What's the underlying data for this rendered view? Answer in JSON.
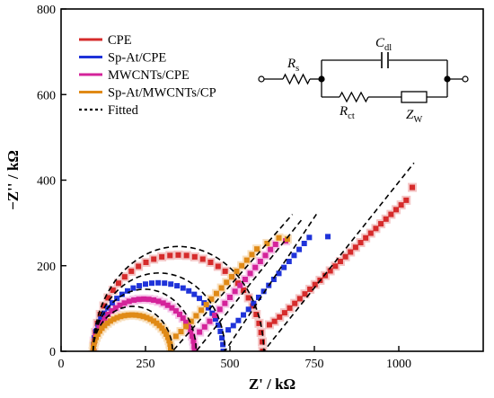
{
  "chart_data": {
    "type": "scatter",
    "xlabel": "Z' / kΩ",
    "ylabel": "−Z'' / kΩ",
    "xlim": [
      0,
      1250
    ],
    "ylim": [
      0,
      800
    ],
    "x_ticks": [
      0,
      250,
      500,
      750,
      1000
    ],
    "y_ticks": [
      0,
      200,
      400,
      600,
      800
    ],
    "grid": false,
    "legend_position": "top-left",
    "series": [
      {
        "name": "CPE",
        "color": "#d62b2b",
        "halo": "#f4c6c6",
        "marker": "square",
        "rs": 97,
        "rct": 500,
        "peak": 225,
        "w_start": 600,
        "w_points": [
          [
            617,
            62
          ],
          [
            632,
            70
          ],
          [
            647,
            80
          ],
          [
            662,
            90
          ],
          [
            677,
            101
          ],
          [
            692,
            112
          ],
          [
            707,
            123
          ],
          [
            722,
            134
          ],
          [
            737,
            145
          ],
          [
            752,
            156
          ],
          [
            767,
            166
          ],
          [
            782,
            177
          ],
          [
            797,
            188
          ],
          [
            812,
            199
          ],
          [
            827,
            210
          ],
          [
            842,
            221
          ],
          [
            857,
            232
          ],
          [
            872,
            243
          ],
          [
            887,
            254
          ],
          [
            902,
            265
          ],
          [
            917,
            276
          ],
          [
            932,
            287
          ],
          [
            947,
            298
          ],
          [
            962,
            309
          ],
          [
            977,
            320
          ],
          [
            992,
            331
          ],
          [
            1007,
            342
          ],
          [
            1022,
            353
          ],
          [
            1040,
            383
          ]
        ]
      },
      {
        "name": "Sp-At/CPE",
        "color": "#1f33d9",
        "halo": "#ffffff",
        "marker": "square",
        "rs": 95,
        "rct": 385,
        "peak": 160,
        "w_start": 480,
        "w_points": [
          [
            495,
            50
          ],
          [
            510,
            60
          ],
          [
            525,
            72
          ],
          [
            540,
            85
          ],
          [
            555,
            98
          ],
          [
            570,
            112
          ],
          [
            585,
            126
          ],
          [
            600,
            140
          ],
          [
            615,
            154
          ],
          [
            630,
            168
          ],
          [
            645,
            182
          ],
          [
            660,
            196
          ],
          [
            675,
            210
          ],
          [
            690,
            224
          ],
          [
            705,
            238
          ],
          [
            720,
            252
          ],
          [
            735,
            266
          ],
          [
            790,
            268
          ]
        ]
      },
      {
        "name": "MWCNTs/CPE",
        "color": "#d4239a",
        "halo": "#f6c6ea",
        "marker": "square",
        "rs": 95,
        "rct": 300,
        "peak": 122,
        "w_start": 395,
        "w_points": [
          [
            410,
            45
          ],
          [
            425,
            57
          ],
          [
            440,
            70
          ],
          [
            455,
            84
          ],
          [
            470,
            98
          ],
          [
            485,
            112
          ],
          [
            500,
            126
          ],
          [
            515,
            140
          ],
          [
            530,
            154
          ],
          [
            545,
            168
          ],
          [
            560,
            182
          ],
          [
            575,
            196
          ],
          [
            590,
            210
          ],
          [
            605,
            224
          ],
          [
            620,
            238
          ],
          [
            635,
            250
          ],
          [
            665,
            258
          ]
        ]
      },
      {
        "name": "Sp-At/MWCNTs/CP",
        "color": "#e08a16",
        "halo": "#f8e0bf",
        "marker": "square",
        "rs": 95,
        "rct": 230,
        "peak": 85,
        "w_start": 325,
        "w_points": [
          [
            340,
            35
          ],
          [
            355,
            46
          ],
          [
            370,
            58
          ],
          [
            385,
            70
          ],
          [
            400,
            83
          ],
          [
            415,
            96
          ],
          [
            430,
            109
          ],
          [
            445,
            122
          ],
          [
            460,
            135
          ],
          [
            475,
            148
          ],
          [
            490,
            161
          ],
          [
            505,
            174
          ],
          [
            520,
            187
          ],
          [
            535,
            200
          ],
          [
            550,
            213
          ],
          [
            565,
            226
          ],
          [
            580,
            239
          ],
          [
            610,
            252
          ],
          [
            645,
            265
          ],
          [
            670,
            262
          ]
        ]
      }
    ],
    "fitted": {
      "name": "Fitted",
      "curves": [
        {
          "rs": 95,
          "rct": 505,
          "peak": 245,
          "w_start": 600,
          "w_end": [
            1045,
            440
          ]
        },
        {
          "rs": 95,
          "rct": 390,
          "peak": 183,
          "w_start": 480,
          "w_end": [
            760,
            325
          ]
        },
        {
          "rs": 95,
          "rct": 305,
          "peak": 145,
          "w_start": 395,
          "w_end": [
            715,
            310
          ]
        },
        {
          "rs": 95,
          "rct": 235,
          "peak": 105,
          "w_start": 325,
          "w_end": [
            685,
            320
          ]
        }
      ]
    },
    "circuit_labels": {
      "rs_main": "R",
      "rs_sub": "s",
      "cdl_main": "C",
      "cdl_sub": "dl",
      "rct_main": "R",
      "rct_sub": "ct",
      "zw_main": "Z",
      "zw_sub": "W"
    }
  }
}
